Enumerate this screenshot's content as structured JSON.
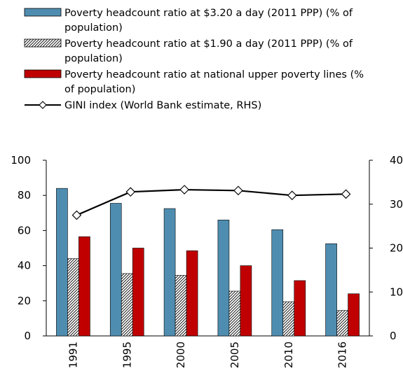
{
  "chart_data": {
    "type": "bar",
    "categories": [
      "1991",
      "1995",
      "2000",
      "2005",
      "2010",
      "2016"
    ],
    "series": [
      {
        "name": "Poverty headcount ratio at $3.20 a day (2011 PPP) (% of population)",
        "legend_lines": [
          "Poverty headcount ratio at $3.20 a day (2011 PPP) (% of",
          "population)"
        ],
        "kind": "bar",
        "axis": "left",
        "fill": "#4f8db0",
        "pattern": "solid",
        "values": [
          84,
          75.5,
          72.5,
          66,
          60.5,
          52.5
        ]
      },
      {
        "name": "Poverty headcount ratio at $1.90 a day (2011 PPP) (% of population)",
        "legend_lines": [
          "Poverty headcount ratio at $1.90 a day (2011 PPP) (% of",
          "population)"
        ],
        "kind": "bar",
        "axis": "left",
        "fill": "#ffffff",
        "pattern": "hatch",
        "values": [
          44,
          35.5,
          34.5,
          25.5,
          19.5,
          14.5
        ]
      },
      {
        "name": "Poverty headcount ratio at national upper poverty lines (% of population)",
        "legend_lines": [
          "Poverty headcount ratio at national upper poverty lines (%",
          "of population)"
        ],
        "kind": "bar",
        "axis": "left",
        "fill": "#c00000",
        "pattern": "solid",
        "values": [
          56.5,
          50,
          48.5,
          40,
          31.5,
          24
        ]
      },
      {
        "name": "GINI index (World Bank estimate, RHS)",
        "legend_lines": [
          "GINI index (World Bank estimate, RHS)"
        ],
        "kind": "line",
        "axis": "right",
        "stroke": "#000000",
        "marker": "diamond",
        "values": [
          27.5,
          32.8,
          33.3,
          33.1,
          32.0,
          32.3
        ]
      }
    ],
    "y_left": {
      "ticks": [
        "0",
        "20",
        "40",
        "60",
        "80",
        "100"
      ],
      "range": [
        0,
        100
      ]
    },
    "y_right": {
      "ticks": [
        "0",
        "10",
        "20",
        "30",
        "40"
      ],
      "range": [
        0,
        40
      ]
    },
    "title": "",
    "xlabel": "",
    "ylabel": "",
    "grid": false,
    "legend_position": "top"
  }
}
